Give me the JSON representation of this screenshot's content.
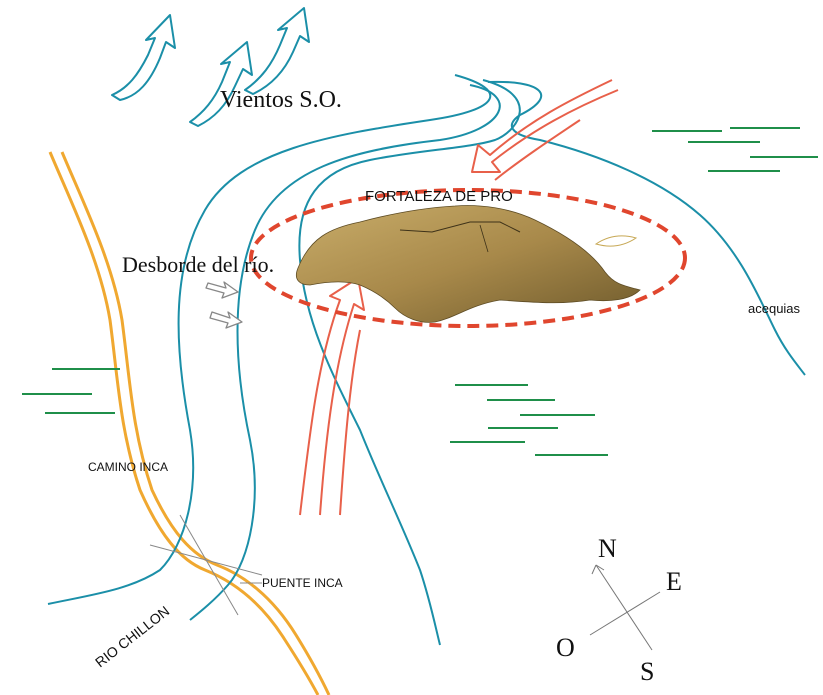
{
  "labels": {
    "winds": "Vientos S.O.",
    "fortress": "FORTALEZA DE PRO",
    "overflow": "Desborde del río.",
    "canals": "acequias",
    "inca_road": "CAMINO INCA",
    "inca_bridge": "PUENTE INCA",
    "river": "RIO CHILLON"
  },
  "compass": {
    "north": "N",
    "east": "E",
    "west": "O",
    "south": "S"
  },
  "colors": {
    "river": "#1b8fa8",
    "inca_road": "#f0a830",
    "red_arrows": "#e8604a",
    "fields": "#1f8f4a",
    "wind_arrows": "#1b8fa8",
    "fortress_ring": "#e0462e",
    "hill": "#b09350"
  }
}
